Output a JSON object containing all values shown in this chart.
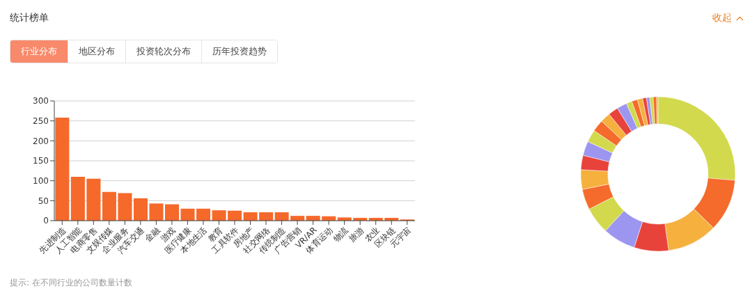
{
  "chart_data": [
    {
      "type": "other",
      "title": "统计榜单",
      "annotations": [
        "收起",
        "行业分布",
        "地区分布",
        "投资轮次分布",
        "历年投资趋势"
      ]
    },
    {
      "type": "bar",
      "categories": [
        "先进制造",
        "人工智能",
        "电商零售",
        "文娱传媒",
        "企业服务",
        "汽车交通",
        "金融",
        "游戏",
        "医疗健康",
        "本地生活",
        "教育",
        "工具软件",
        "房地产",
        "社交网络",
        "传统制造",
        "广告营销",
        "VR/AR",
        "体育运动",
        "物流",
        "旅游",
        "农业",
        "区块链",
        "元宇宙"
      ],
      "values": [
        258,
        110,
        105,
        72,
        69,
        56,
        43,
        41,
        30,
        30,
        26,
        25,
        21,
        21,
        21,
        12,
        12,
        11,
        8,
        7,
        7,
        7,
        3
      ],
      "color": "#f5692b",
      "ylim": [
        0,
        300
      ],
      "yticks": [
        0,
        50,
        100,
        150,
        200,
        250,
        300
      ],
      "grid": "y",
      "annotations": [
        "提示: 在不同行业的公司数量计数"
      ]
    },
    {
      "type": "donut",
      "categories": [
        null,
        null,
        null,
        null,
        null,
        null,
        null,
        null,
        null,
        null,
        null,
        null,
        null,
        null,
        null,
        null,
        null,
        null,
        null,
        null,
        null,
        null,
        null
      ],
      "values": [
        26.3,
        11.0,
        10.5,
        7.2,
        6.9,
        5.6,
        4.3,
        4.1,
        3.0,
        3.0,
        2.6,
        2.5,
        2.1,
        2.1,
        2.1,
        1.2,
        1.2,
        1.1,
        0.8,
        0.7,
        0.7,
        0.7,
        0.3
      ],
      "colors": [
        "#d2d94c",
        "#f46b2c",
        "#f5b03e",
        "#e8433a",
        "#9d96f0",
        "#d2d94c",
        "#f46b2c",
        "#f5b03e",
        "#e8433a",
        "#9d96f0",
        "#d2d94c",
        "#f46b2c",
        "#f5b03e",
        "#e8433a",
        "#9d96f0",
        "#d2d94c",
        "#f46b2c",
        "#f5b03e",
        "#e8433a",
        "#9d96f0",
        "#d2d94c",
        "#f46b2c",
        "#f5b03e"
      ]
    }
  ]
}
